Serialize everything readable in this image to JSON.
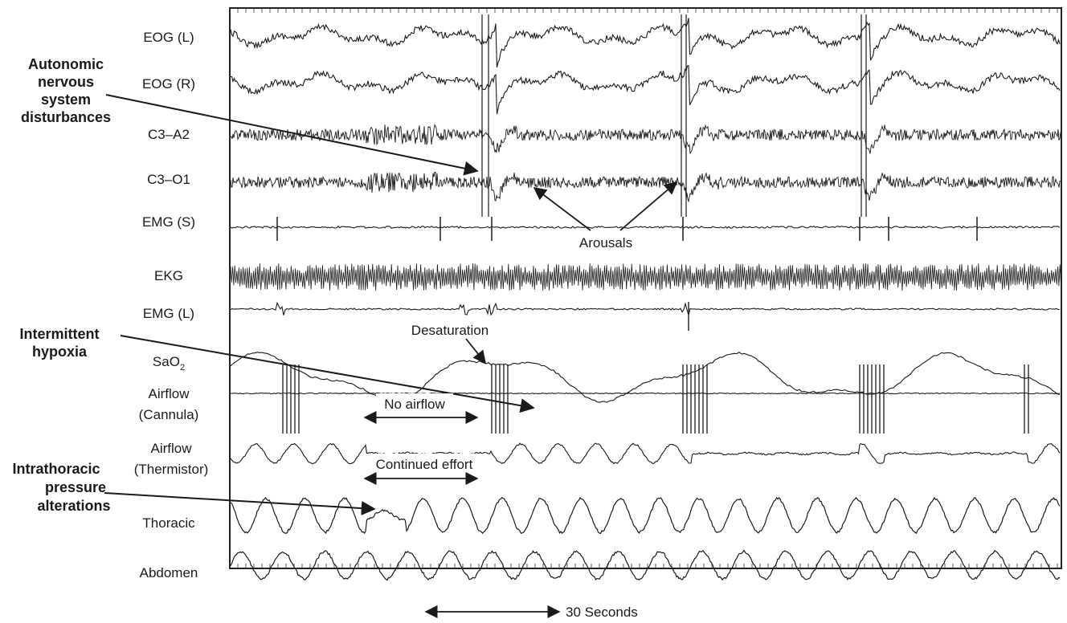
{
  "channels": [
    {
      "id": "eog-l",
      "label": "EOG (L)"
    },
    {
      "id": "eog-r",
      "label": "EOG (R)"
    },
    {
      "id": "c3a2",
      "label": "C3–A2"
    },
    {
      "id": "c3o1",
      "label": "C3–O1"
    },
    {
      "id": "emg-s",
      "label": "EMG (S)"
    },
    {
      "id": "ekg",
      "label": "EKG"
    },
    {
      "id": "emg-l",
      "label": "EMG (L)"
    },
    {
      "id": "sao2",
      "label": "SaO",
      "sub": "2"
    },
    {
      "id": "airflow-cannula",
      "label": "Airflow",
      "label2": "(Cannula)"
    },
    {
      "id": "airflow-thermistor",
      "label": "Airflow",
      "label2": "(Thermistor)"
    },
    {
      "id": "thoracic",
      "label": "Thoracic"
    },
    {
      "id": "abdomen",
      "label": "Abdomen"
    }
  ],
  "callouts": {
    "autonomic": [
      "Autonomic",
      "nervous",
      "system",
      "disturbances"
    ],
    "hypoxia": [
      "Intermittent",
      "hypoxia"
    ],
    "intrathoracic": [
      "Intrathoracic",
      "pressure",
      "alterations"
    ]
  },
  "annotations": {
    "arousals": "Arousals",
    "desaturation": "Desaturation",
    "no_airflow": "No airflow",
    "continued_effort": "Continued effort",
    "time_scale": "30 Seconds"
  }
}
